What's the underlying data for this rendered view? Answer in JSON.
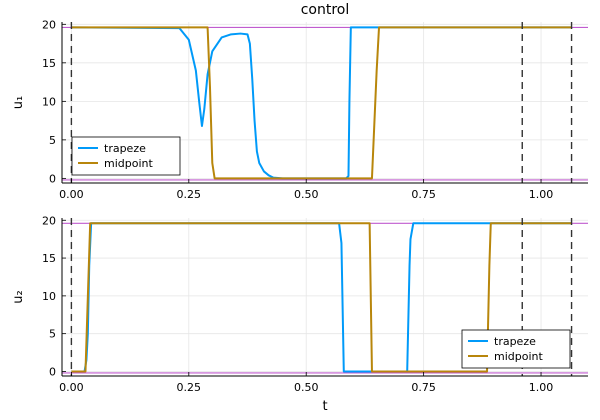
{
  "chart_data": [
    {
      "type": "line",
      "title": "control",
      "xlabel": "",
      "ylabel": "u₁",
      "xlim": [
        -0.02,
        1.1
      ],
      "ylim": [
        -0.6,
        20.3
      ],
      "xticks": [
        0.0,
        0.25,
        0.5,
        0.75,
        1.0
      ],
      "xticklabels": [
        "0.00",
        "0.25",
        "0.50",
        "0.75",
        "1.00"
      ],
      "yticks": [
        0,
        5,
        10,
        15,
        20
      ],
      "yticklabels": [
        "0",
        "5",
        "10",
        "15",
        "20"
      ],
      "grid": true,
      "legend": "bottom-left",
      "hlines": [
        19.6,
        -0.2
      ],
      "vlines": [
        0.0,
        0.96,
        1.065
      ],
      "series": [
        {
          "name": "trapeze",
          "color": "#009af9",
          "x": [
            0.0,
            0.23,
            0.25,
            0.265,
            0.272,
            0.278,
            0.283,
            0.29,
            0.3,
            0.32,
            0.34,
            0.36,
            0.375,
            0.38,
            0.385,
            0.39,
            0.395,
            0.4,
            0.41,
            0.42,
            0.43,
            0.45,
            0.5,
            0.55,
            0.585,
            0.59,
            0.592,
            0.595,
            0.6,
            1.065
          ],
          "y": [
            19.6,
            19.5,
            18.0,
            14.0,
            10.0,
            6.8,
            9.0,
            13.5,
            16.5,
            18.3,
            18.7,
            18.8,
            18.7,
            17.5,
            13.0,
            7.5,
            3.5,
            2.0,
            0.9,
            0.4,
            0.1,
            0.0,
            0.0,
            0.0,
            0.0,
            0.3,
            10.0,
            19.6,
            19.6,
            19.6
          ]
        },
        {
          "name": "midpoint",
          "color": "#b8860b",
          "x": [
            0.0,
            0.29,
            0.295,
            0.3,
            0.305,
            0.64,
            0.645,
            0.65,
            0.655,
            1.065
          ],
          "y": [
            19.6,
            19.6,
            12.0,
            2.0,
            0.0,
            0.0,
            7.0,
            14.0,
            19.6,
            19.6
          ]
        }
      ]
    },
    {
      "type": "line",
      "title": "",
      "xlabel": "t",
      "ylabel": "u₂",
      "xlim": [
        -0.02,
        1.1
      ],
      "ylim": [
        -0.6,
        20.3
      ],
      "xticks": [
        0.0,
        0.25,
        0.5,
        0.75,
        1.0
      ],
      "xticklabels": [
        "0.00",
        "0.25",
        "0.50",
        "0.75",
        "1.00"
      ],
      "yticks": [
        0,
        5,
        10,
        15,
        20
      ],
      "yticklabels": [
        "0",
        "5",
        "10",
        "15",
        "20"
      ],
      "grid": true,
      "legend": "bottom-right",
      "hlines": [
        19.6,
        -0.2
      ],
      "vlines": [
        0.0,
        0.96,
        1.065
      ],
      "series": [
        {
          "name": "trapeze",
          "color": "#009af9",
          "x": [
            0.0,
            0.028,
            0.032,
            0.035,
            0.038,
            0.042,
            0.57,
            0.575,
            0.58,
            0.585,
            0.715,
            0.72,
            0.722,
            0.728,
            1.065
          ],
          "y": [
            0.0,
            0.0,
            1.5,
            5.0,
            14.0,
            19.6,
            19.6,
            17.0,
            0.0,
            0.0,
            0.0,
            14.0,
            17.5,
            19.6,
            19.6
          ]
        },
        {
          "name": "midpoint",
          "color": "#b8860b",
          "x": [
            0.0,
            0.03,
            0.04,
            0.635,
            0.64,
            0.645,
            0.885,
            0.89,
            0.893,
            1.065
          ],
          "y": [
            0.0,
            0.0,
            19.6,
            19.6,
            0.0,
            0.0,
            0.0,
            14.0,
            19.6,
            19.6
          ]
        }
      ]
    }
  ]
}
